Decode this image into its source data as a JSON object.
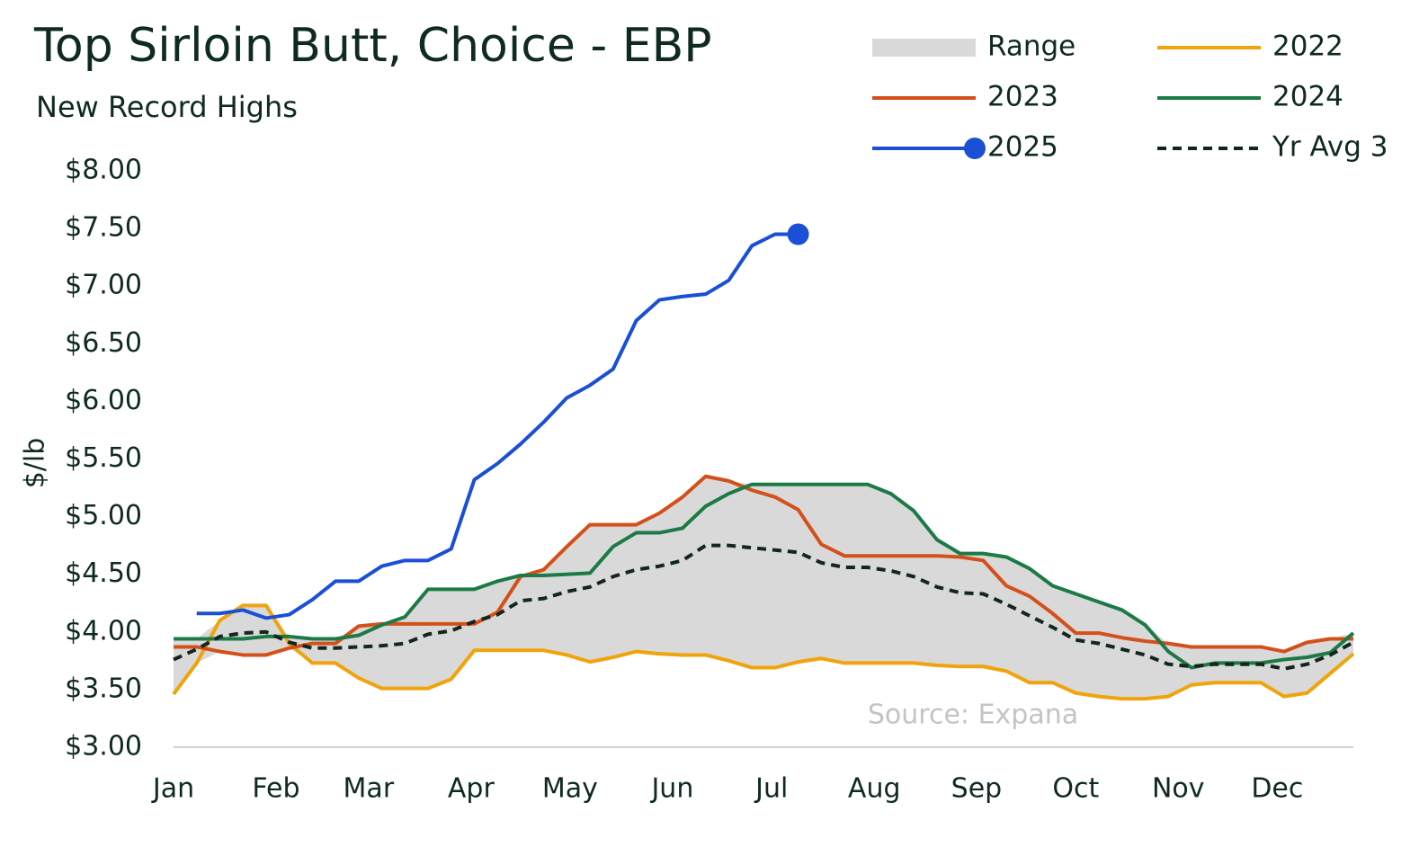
{
  "chart_data": {
    "type": "line",
    "title": "Top Sirloin Butt, Choice - EBP",
    "subtitle": "New Record Highs",
    "y_label": "$/lb",
    "annotation": "Source: Expana",
    "legend": "top-right",
    "grid": false,
    "x": [
      1,
      2,
      3,
      4,
      5,
      6,
      7,
      8,
      9,
      10,
      11,
      12,
      13,
      14,
      15,
      16,
      17,
      18,
      19,
      20,
      21,
      22,
      23,
      24,
      25,
      26,
      27,
      28,
      29,
      30,
      31,
      32,
      33,
      34,
      35,
      36,
      37,
      38,
      39,
      40,
      41,
      42,
      43,
      44,
      45,
      46,
      47,
      48,
      49,
      50,
      51,
      52
    ],
    "xlim": [
      1,
      52
    ],
    "xticks": [
      {
        "value": 1,
        "label": "Jan"
      },
      {
        "value": 5.43,
        "label": "Feb"
      },
      {
        "value": 9.43,
        "label": "Mar"
      },
      {
        "value": 13.86,
        "label": "Apr"
      },
      {
        "value": 18.14,
        "label": "May"
      },
      {
        "value": 22.57,
        "label": "Jun"
      },
      {
        "value": 26.86,
        "label": "Jul"
      },
      {
        "value": 31.29,
        "label": "Aug"
      },
      {
        "value": 35.71,
        "label": "Sep"
      },
      {
        "value": 40,
        "label": "Oct"
      },
      {
        "value": 44.43,
        "label": "Nov"
      },
      {
        "value": 48.71,
        "label": "Dec"
      }
    ],
    "ylim": [
      3,
      8
    ],
    "yticks": [
      {
        "value": 3,
        "label": "$3.00"
      },
      {
        "value": 3.5,
        "label": "$3.50"
      },
      {
        "value": 4,
        "label": "$4.00"
      },
      {
        "value": 4.5,
        "label": "$4.50"
      },
      {
        "value": 5,
        "label": "$5.00"
      },
      {
        "value": 5.5,
        "label": "$5.50"
      },
      {
        "value": 6,
        "label": "$6.00"
      },
      {
        "value": 6.5,
        "label": "$6.50"
      },
      {
        "value": 7,
        "label": "$7.00"
      },
      {
        "value": 7.5,
        "label": "$7.50"
      },
      {
        "value": 8,
        "label": "$8.00"
      }
    ],
    "series": [
      {
        "name": "Range",
        "color": "#d9d9d9",
        "type": "range",
        "low": [
          3.46,
          3.73,
          3.83,
          3.8,
          3.8,
          3.86,
          3.73,
          3.73,
          3.6,
          3.51,
          3.51,
          3.51,
          3.59,
          3.84,
          3.84,
          3.84,
          3.84,
          3.8,
          3.74,
          3.78,
          3.83,
          3.81,
          3.8,
          3.8,
          3.75,
          3.69,
          3.69,
          3.74,
          3.77,
          3.73,
          3.73,
          3.73,
          3.73,
          3.71,
          3.7,
          3.7,
          3.66,
          3.56,
          3.56,
          3.47,
          3.44,
          3.42,
          3.42,
          3.44,
          3.54,
          3.56,
          3.56,
          3.56,
          3.44,
          3.47,
          3.64,
          3.81
        ],
        "high": [
          3.94,
          3.94,
          4.1,
          4.23,
          4.23,
          3.96,
          3.94,
          3.94,
          4.05,
          4.07,
          4.13,
          4.37,
          4.37,
          4.37,
          4.44,
          4.49,
          4.54,
          4.74,
          4.93,
          4.93,
          4.93,
          5.03,
          5.17,
          5.35,
          5.31,
          5.28,
          5.28,
          5.28,
          5.28,
          5.28,
          5.28,
          5.2,
          5.05,
          4.8,
          4.68,
          4.68,
          4.65,
          4.55,
          4.4,
          4.33,
          4.26,
          4.19,
          4.06,
          3.9,
          3.87,
          3.87,
          3.87,
          3.87,
          3.83,
          3.91,
          3.94,
          3.99
        ]
      },
      {
        "name": "2022",
        "color": "#f0a30a",
        "values": [
          3.46,
          3.73,
          4.1,
          4.23,
          4.23,
          3.9,
          3.73,
          3.73,
          3.6,
          3.51,
          3.51,
          3.51,
          3.59,
          3.84,
          3.84,
          3.84,
          3.84,
          3.8,
          3.74,
          3.78,
          3.83,
          3.81,
          3.8,
          3.8,
          3.75,
          3.69,
          3.69,
          3.74,
          3.77,
          3.73,
          3.73,
          3.73,
          3.73,
          3.71,
          3.7,
          3.7,
          3.66,
          3.56,
          3.56,
          3.47,
          3.44,
          3.42,
          3.42,
          3.44,
          3.54,
          3.56,
          3.56,
          3.56,
          3.44,
          3.47,
          3.64,
          3.81
        ]
      },
      {
        "name": "2023",
        "color": "#d4501a",
        "values": [
          3.87,
          3.87,
          3.83,
          3.8,
          3.8,
          3.86,
          3.9,
          3.9,
          4.05,
          4.07,
          4.07,
          4.07,
          4.07,
          4.07,
          4.17,
          4.48,
          4.54,
          4.74,
          4.93,
          4.93,
          4.93,
          5.03,
          5.17,
          5.35,
          5.31,
          5.23,
          5.17,
          5.06,
          4.76,
          4.66,
          4.66,
          4.66,
          4.66,
          4.66,
          4.65,
          4.62,
          4.4,
          4.31,
          4.16,
          3.99,
          3.99,
          3.95,
          3.92,
          3.9,
          3.87,
          3.87,
          3.87,
          3.87,
          3.83,
          3.91,
          3.94,
          3.94
        ]
      },
      {
        "name": "2024",
        "color": "#1b7a46",
        "values": [
          3.94,
          3.94,
          3.94,
          3.94,
          3.96,
          3.96,
          3.94,
          3.94,
          3.97,
          4.06,
          4.13,
          4.37,
          4.37,
          4.37,
          4.44,
          4.49,
          4.49,
          4.5,
          4.51,
          4.74,
          4.86,
          4.86,
          4.9,
          5.09,
          5.2,
          5.28,
          5.28,
          5.28,
          5.28,
          5.28,
          5.28,
          5.2,
          5.05,
          4.8,
          4.68,
          4.68,
          4.65,
          4.55,
          4.4,
          4.33,
          4.26,
          4.19,
          4.06,
          3.83,
          3.69,
          3.73,
          3.73,
          3.73,
          3.76,
          3.78,
          3.82,
          3.99
        ]
      },
      {
        "name": "2025",
        "color": "#1a4fd6",
        "end_marker": true,
        "values": [
          null,
          4.16,
          4.16,
          4.19,
          4.12,
          4.15,
          4.28,
          4.44,
          4.44,
          4.57,
          4.62,
          4.62,
          4.72,
          5.32,
          5.46,
          5.63,
          5.82,
          6.03,
          6.14,
          6.28,
          6.7,
          6.88,
          6.91,
          6.93,
          7.05,
          7.35,
          7.45,
          7.45,
          null,
          null,
          null,
          null,
          null,
          null,
          null,
          null,
          null,
          null,
          null,
          null,
          null,
          null,
          null,
          null,
          null,
          null,
          null,
          null,
          null,
          null,
          null,
          null
        ]
      },
      {
        "name": "Yr Avg 3",
        "color": "#13261d",
        "dashed": true,
        "values": [
          3.76,
          3.85,
          3.96,
          3.99,
          4.0,
          3.91,
          3.86,
          3.86,
          3.87,
          3.88,
          3.9,
          3.98,
          4.01,
          4.09,
          4.15,
          4.27,
          4.29,
          4.35,
          4.39,
          4.48,
          4.54,
          4.57,
          4.62,
          4.75,
          4.75,
          4.73,
          4.71,
          4.69,
          4.6,
          4.56,
          4.56,
          4.53,
          4.48,
          4.39,
          4.34,
          4.33,
          4.24,
          4.14,
          4.04,
          3.93,
          3.9,
          3.85,
          3.8,
          3.72,
          3.7,
          3.72,
          3.72,
          3.72,
          3.68,
          3.72,
          3.8,
          3.91
        ]
      }
    ]
  }
}
